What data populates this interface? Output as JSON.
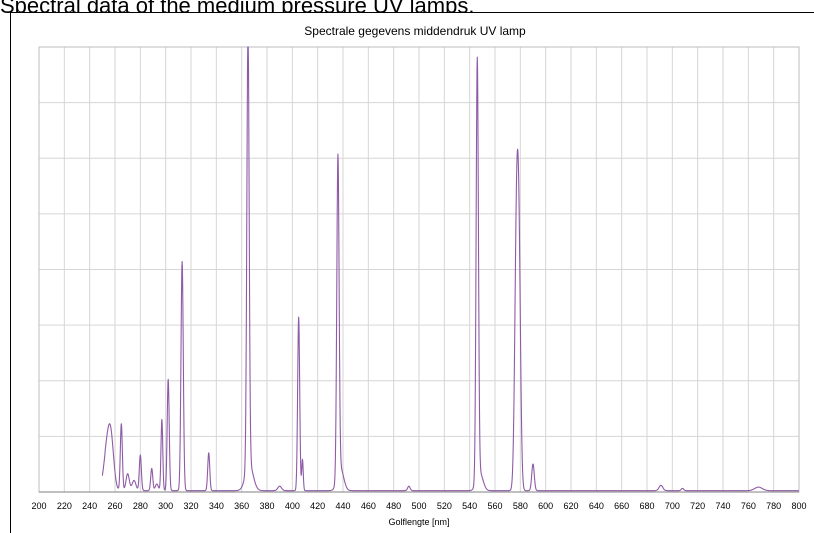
{
  "caption": "Spectral data of the medium pressure UV lamps.",
  "chart_data": {
    "type": "line",
    "title": "Spectrale gegevens middendruk UV lamp",
    "xlabel": "Golflengte [nm]",
    "ylabel": "",
    "xlim": [
      200,
      800
    ],
    "ylim": [
      0,
      100
    ],
    "x_ticks": [
      200,
      220,
      240,
      260,
      280,
      300,
      320,
      340,
      360,
      380,
      400,
      420,
      440,
      460,
      480,
      500,
      520,
      540,
      560,
      580,
      600,
      620,
      640,
      660,
      680,
      700,
      720,
      740,
      760,
      780,
      800
    ],
    "y_ticks": [
      0,
      12.5,
      25,
      37.5,
      50,
      62.5,
      75,
      87.5,
      100
    ],
    "y_tick_labels_shown": false,
    "grid": true,
    "line_color": "#8e5ba6",
    "series": [
      {
        "name": "",
        "color": "#8e5ba6",
        "baseline": 0.3,
        "peaks": [
          {
            "x": 254,
            "y": 10,
            "w": 2.8
          },
          {
            "x": 257,
            "y": 8,
            "w": 2.2
          },
          {
            "x": 265,
            "y": 15,
            "w": 0.8
          },
          {
            "x": 270,
            "y": 3.8,
            "w": 1.3
          },
          {
            "x": 275,
            "y": 2.3,
            "w": 1.5
          },
          {
            "x": 280,
            "y": 8,
            "w": 0.8
          },
          {
            "x": 289,
            "y": 5,
            "w": 0.8
          },
          {
            "x": 293,
            "y": 1.5,
            "w": 1.2
          },
          {
            "x": 297,
            "y": 16,
            "w": 0.7
          },
          {
            "x": 302,
            "y": 25,
            "w": 0.8
          },
          {
            "x": 313,
            "y": 51.5,
            "w": 0.9
          },
          {
            "x": 334,
            "y": 8.5,
            "w": 0.8
          },
          {
            "x": 365,
            "y": 98.5,
            "w": 0.9
          },
          {
            "x": 366,
            "y": 6,
            "w": 3
          },
          {
            "x": 390,
            "y": 1,
            "w": 1.5
          },
          {
            "x": 405,
            "y": 39,
            "w": 0.8
          },
          {
            "x": 408,
            "y": 7,
            "w": 0.6
          },
          {
            "x": 436,
            "y": 72,
            "w": 0.9
          },
          {
            "x": 438,
            "y": 5,
            "w": 2.5
          },
          {
            "x": 492,
            "y": 1,
            "w": 1
          },
          {
            "x": 546,
            "y": 94.5,
            "w": 0.9
          },
          {
            "x": 548,
            "y": 4,
            "w": 2.5
          },
          {
            "x": 577,
            "y": 56.5,
            "w": 1.4
          },
          {
            "x": 579,
            "y": 44,
            "w": 1.3
          },
          {
            "x": 590,
            "y": 6,
            "w": 1
          },
          {
            "x": 691,
            "y": 1.2,
            "w": 1.5
          },
          {
            "x": 708,
            "y": 0.5,
            "w": 1
          },
          {
            "x": 768,
            "y": 0.8,
            "w": 3
          }
        ]
      }
    ]
  }
}
